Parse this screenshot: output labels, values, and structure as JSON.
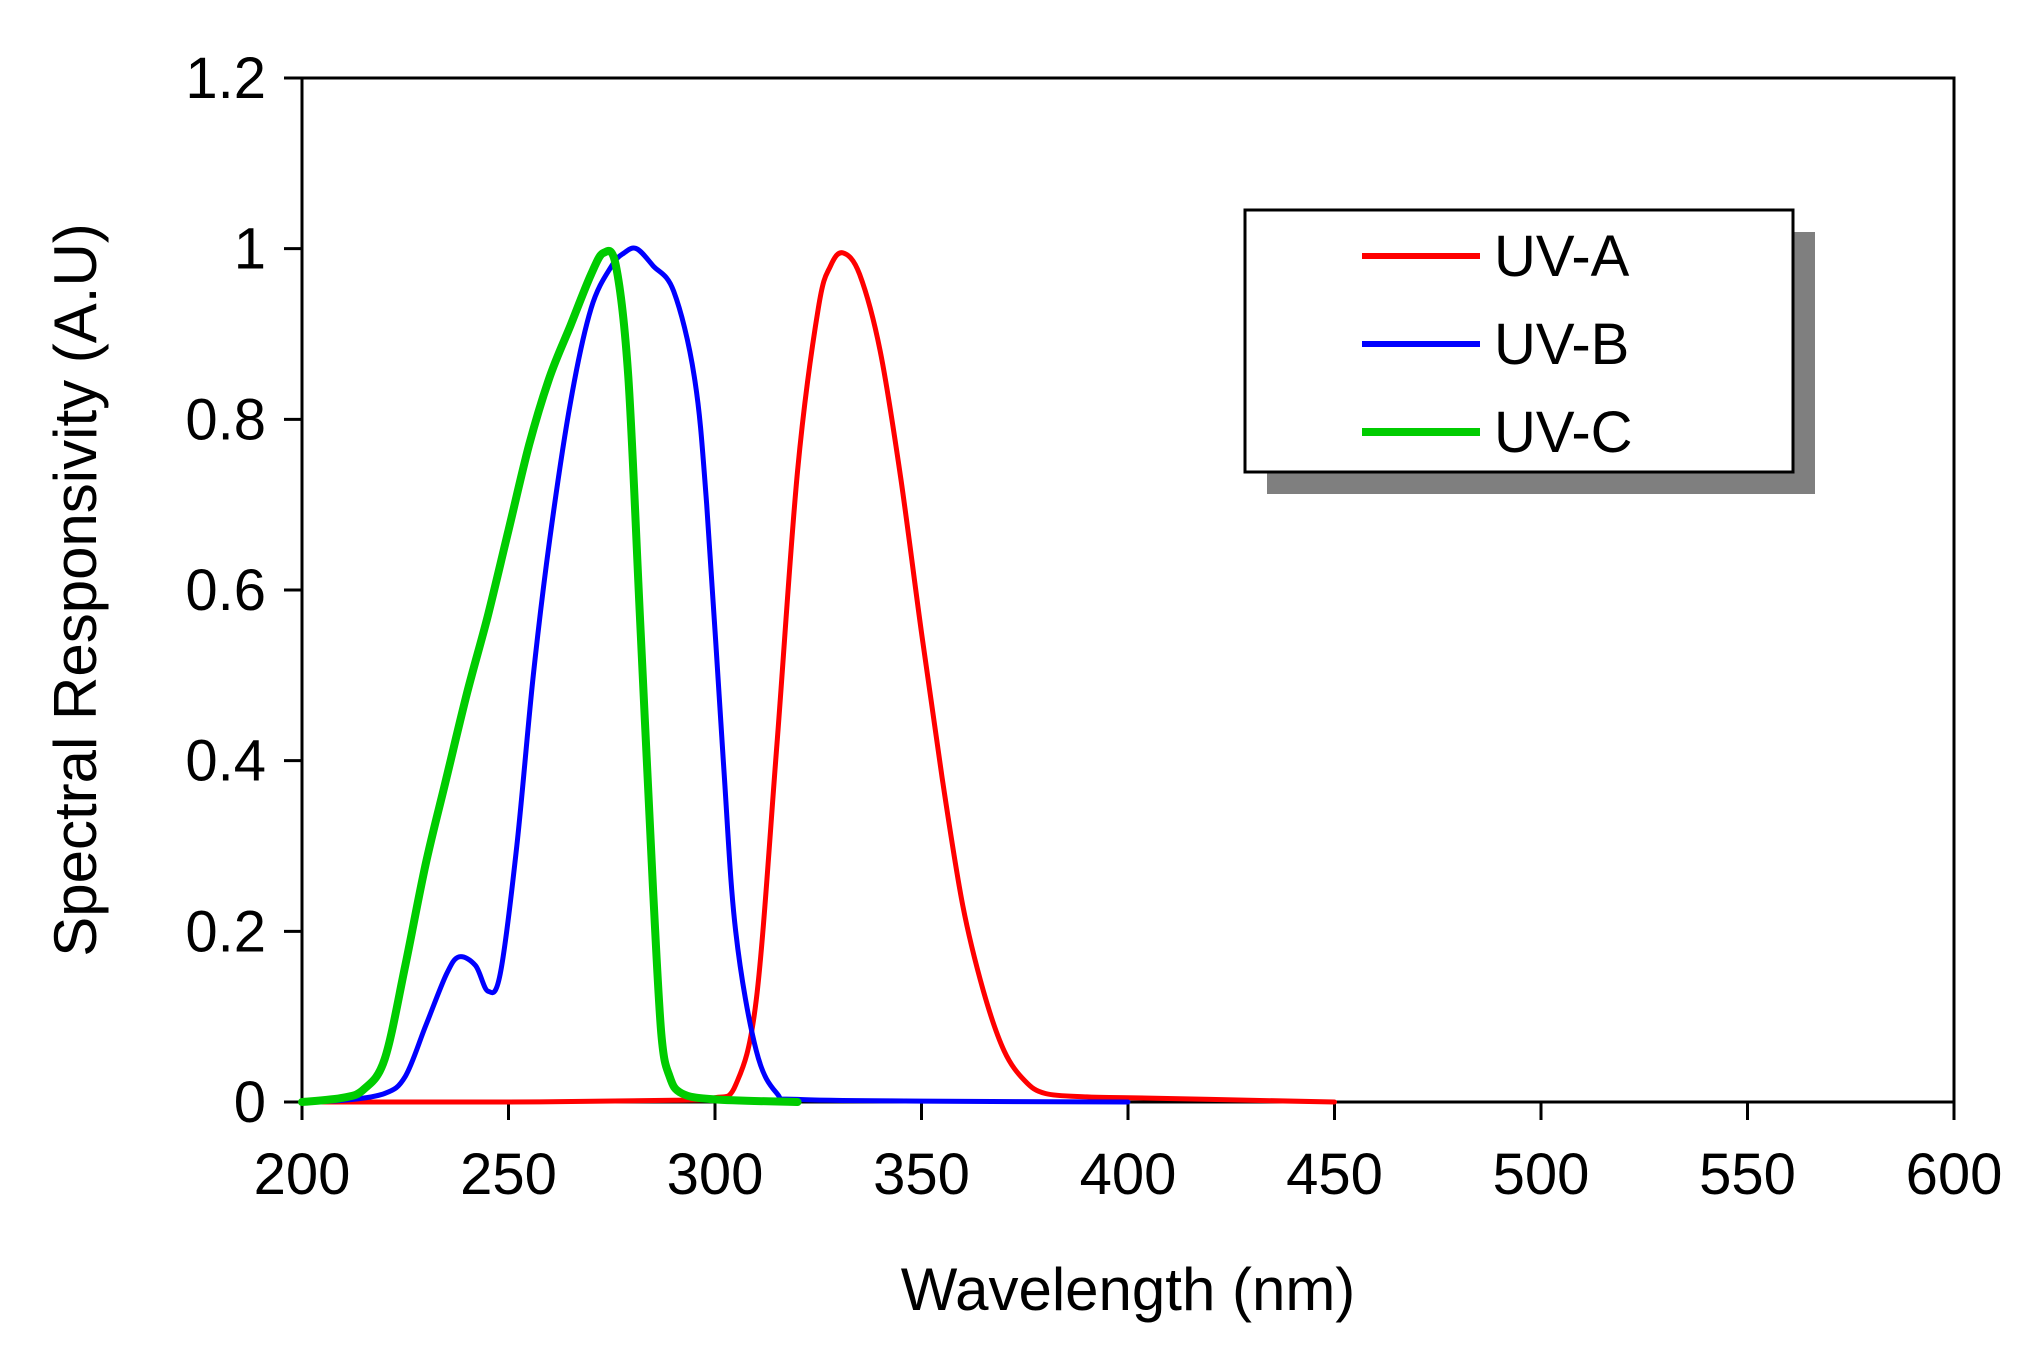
{
  "chart_data": {
    "type": "line",
    "title": "",
    "xlabel": "Wavelength (nm)",
    "ylabel": "Spectral Responsivity (A.U)",
    "xlim": [
      200,
      600
    ],
    "ylim": [
      0,
      1.2
    ],
    "xticks": [
      200,
      250,
      300,
      350,
      400,
      450,
      500,
      550,
      600
    ],
    "yticks": [
      0,
      0.2,
      0.4,
      0.6,
      0.8,
      1,
      1.2
    ],
    "xtick_labels": [
      "200",
      "250",
      "300",
      "350",
      "400",
      "450",
      "500",
      "550",
      "600"
    ],
    "ytick_labels": [
      "0",
      "0.2",
      "0.4",
      "0.6",
      "0.8",
      "1",
      "1.2"
    ],
    "grid": false,
    "legend_position": "top-right",
    "series": [
      {
        "name": "UV-A",
        "color": "#ff0000",
        "x": [
          200,
          250,
          290,
          300,
          305,
          310,
          315,
          320,
          325,
          328,
          331,
          335,
          340,
          345,
          350,
          355,
          360,
          365,
          370,
          375,
          380,
          390,
          400,
          420,
          450
        ],
        "y": [
          0,
          0,
          0.002,
          0.005,
          0.02,
          0.12,
          0.42,
          0.74,
          0.93,
          0.98,
          0.995,
          0.97,
          0.88,
          0.73,
          0.55,
          0.38,
          0.23,
          0.13,
          0.06,
          0.025,
          0.01,
          0.006,
          0.005,
          0.003,
          0
        ]
      },
      {
        "name": "UV-B",
        "color": "#0000ff",
        "x": [
          200,
          210,
          220,
          225,
          230,
          235,
          238,
          242,
          245,
          248,
          252,
          256,
          260,
          265,
          270,
          275,
          278,
          281,
          285,
          290,
          295,
          298,
          302,
          305,
          310,
          315,
          320,
          350,
          400
        ],
        "y": [
          0,
          0.002,
          0.01,
          0.03,
          0.09,
          0.15,
          0.17,
          0.16,
          0.13,
          0.15,
          0.3,
          0.5,
          0.66,
          0.82,
          0.93,
          0.98,
          0.995,
          1.0,
          0.98,
          0.95,
          0.85,
          0.7,
          0.4,
          0.2,
          0.06,
          0.01,
          0.003,
          0.001,
          0
        ]
      },
      {
        "name": "UV-C",
        "color": "#00cc00",
        "x": [
          200,
          210,
          215,
          220,
          225,
          230,
          235,
          240,
          245,
          250,
          255,
          260,
          265,
          270,
          273,
          276,
          279,
          282,
          285,
          287,
          289,
          292,
          300,
          320
        ],
        "y": [
          0,
          0.005,
          0.015,
          0.05,
          0.16,
          0.28,
          0.38,
          0.48,
          0.57,
          0.67,
          0.77,
          0.85,
          0.91,
          0.97,
          0.995,
          0.98,
          0.85,
          0.55,
          0.25,
          0.08,
          0.03,
          0.01,
          0.003,
          0
        ]
      }
    ]
  }
}
